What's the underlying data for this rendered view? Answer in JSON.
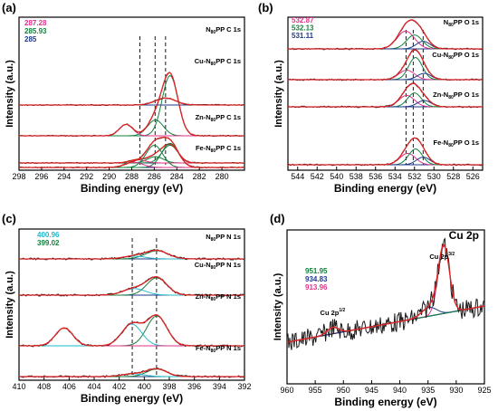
{
  "chart_data": [
    {
      "id": "a",
      "type": "line",
      "panel_label": "(a)",
      "xlabel": "Binding energy (eV)",
      "ylabel": "Intensity (a.u.)",
      "xlim": [
        298,
        278
      ],
      "xticks": [
        298,
        296,
        294,
        292,
        290,
        288,
        286,
        284,
        282,
        280
      ],
      "legend": [
        {
          "text": "287.28",
          "color": "#e0338b"
        },
        {
          "text": "285.93",
          "color": "#15803d"
        },
        {
          "text": "285",
          "color": "#1e3a8a"
        }
      ],
      "reference_lines": [
        287.28,
        285.93,
        285
      ],
      "series": [
        {
          "label": "N",
          "sub": "80",
          "label_rest": "PP C 1s",
          "peaks": [
            [
              285,
              0.11,
              0.9
            ]
          ]
        },
        {
          "label": "Cu-N",
          "sub": "80",
          "label_rest": "PP C 1s",
          "peaks": [
            [
              284.6,
              0.95,
              0.7
            ],
            [
              285.9,
              0.25,
              0.7
            ],
            [
              288.5,
              0.18,
              0.6
            ]
          ]
        },
        {
          "label": "Zn-N",
          "sub": "80",
          "label_rest": "PP C 1s",
          "peaks": [
            [
              284.6,
              0.28,
              0.7
            ],
            [
              285.9,
              0.1,
              0.7
            ],
            [
              287.5,
              0.05,
              0.7
            ]
          ]
        },
        {
          "label": "Fe-N",
          "sub": "80",
          "label_rest": "PP C 1s",
          "peaks": [
            [
              284.6,
              0.38,
              0.75
            ],
            [
              286.0,
              0.35,
              0.75
            ],
            [
              287.8,
              0.08,
              0.8
            ]
          ]
        }
      ]
    },
    {
      "id": "b",
      "type": "line",
      "panel_label": "(b)",
      "xlabel": "Binding energy (eV)",
      "ylabel": "Intensity (a.u.)",
      "xlim": [
        545,
        525
      ],
      "xticks": [
        544,
        542,
        540,
        538,
        536,
        534,
        532,
        530,
        528,
        526
      ],
      "legend": [
        {
          "text": "532.87",
          "color": "#e0338b"
        },
        {
          "text": "532.13",
          "color": "#15803d"
        },
        {
          "text": "531.11",
          "color": "#1e3a8a"
        }
      ],
      "reference_lines": [
        532.87,
        532.13,
        531.11
      ],
      "series": [
        {
          "label": "N",
          "sub": "80",
          "label_rest": "PP O 1s",
          "peaks": [
            [
              532.9,
              0.28,
              0.9
            ],
            [
              532.0,
              0.22,
              0.8
            ],
            [
              531.1,
              0.12,
              0.7
            ]
          ]
        },
        {
          "label": "Cu-N",
          "sub": "80",
          "label_rest": "PP O 1s",
          "peaks": [
            [
              532.8,
              0.15,
              0.8
            ],
            [
              531.9,
              0.35,
              0.7
            ],
            [
              531.0,
              0.1,
              0.7
            ]
          ]
        },
        {
          "label": "Zn-N",
          "sub": "80",
          "label_rest": "PP O 1s",
          "peaks": [
            [
              532.8,
              0.18,
              0.8
            ],
            [
              532.0,
              0.22,
              0.7
            ],
            [
              531.0,
              0.1,
              0.7
            ]
          ]
        },
        {
          "label": "Fe-N",
          "sub": "80",
          "label_rest": "PP O 1s",
          "peaks": [
            [
              532.7,
              0.18,
              0.8
            ],
            [
              531.9,
              0.25,
              0.7
            ],
            [
              531.1,
              0.12,
              0.7
            ]
          ]
        }
      ]
    },
    {
      "id": "c",
      "type": "line",
      "panel_label": "(c)",
      "xlabel": "Binding energy (eV)",
      "ylabel": "Intensity (a.u.)",
      "xlim": [
        410,
        392
      ],
      "xticks": [
        410,
        408,
        406,
        404,
        402,
        400,
        398,
        396,
        394,
        392
      ],
      "legend": [
        {
          "text": "400.96",
          "color": "#22b8c9"
        },
        {
          "text": "399.02",
          "color": "#15803d"
        }
      ],
      "reference_lines": [
        400.96,
        399.02
      ],
      "series": [
        {
          "label": "N",
          "sub": "80",
          "label_rest": "PP N 1s",
          "peaks": [
            [
              399.0,
              0.15,
              0.9
            ],
            [
              400.8,
              0.05,
              0.9
            ]
          ]
        },
        {
          "label": "Cu-N",
          "sub": "80",
          "label_rest": "PP N 1s",
          "peaks": [
            [
              399.0,
              0.32,
              0.8
            ],
            [
              400.8,
              0.12,
              0.9
            ]
          ]
        },
        {
          "label": "Zn-N",
          "sub": "80",
          "label_rest": "PP N 1s",
          "peaks": [
            [
              399.0,
              0.55,
              0.8
            ],
            [
              401.0,
              0.4,
              0.8
            ],
            [
              406.4,
              0.33,
              0.7
            ]
          ]
        },
        {
          "label": "Fe-N",
          "sub": "80",
          "label_rest": "PP N 1s",
          "peaks": [
            [
              399.0,
              0.14,
              0.8
            ],
            [
              400.9,
              0.05,
              0.9
            ]
          ]
        }
      ]
    },
    {
      "id": "d",
      "type": "line",
      "panel_label": "(d)",
      "xlabel": "Binding energy (eV)",
      "ylabel": "Intensity (a.u.)",
      "xlim": [
        960,
        925
      ],
      "xticks": [
        960,
        955,
        950,
        945,
        940,
        935,
        930,
        925
      ],
      "title": "Cu 2p",
      "legend": [
        {
          "text": "951.95",
          "color": "#15803d"
        },
        {
          "text": "934.83",
          "color": "#1e3a8a"
        },
        {
          "text": "913.96",
          "color": "#e0338b"
        }
      ],
      "annotations": [
        {
          "text": "Cu 2p",
          "sup": "3/2",
          "x": 932.5
        },
        {
          "text": "Cu 2p",
          "sup": "1/2",
          "x": 951.9
        }
      ],
      "peaks": [
        [
          932.2,
          0.62,
          1.0
        ],
        [
          934.8,
          0.08,
          1.3
        ],
        [
          951.9,
          0.06,
          1.0
        ]
      ]
    }
  ]
}
